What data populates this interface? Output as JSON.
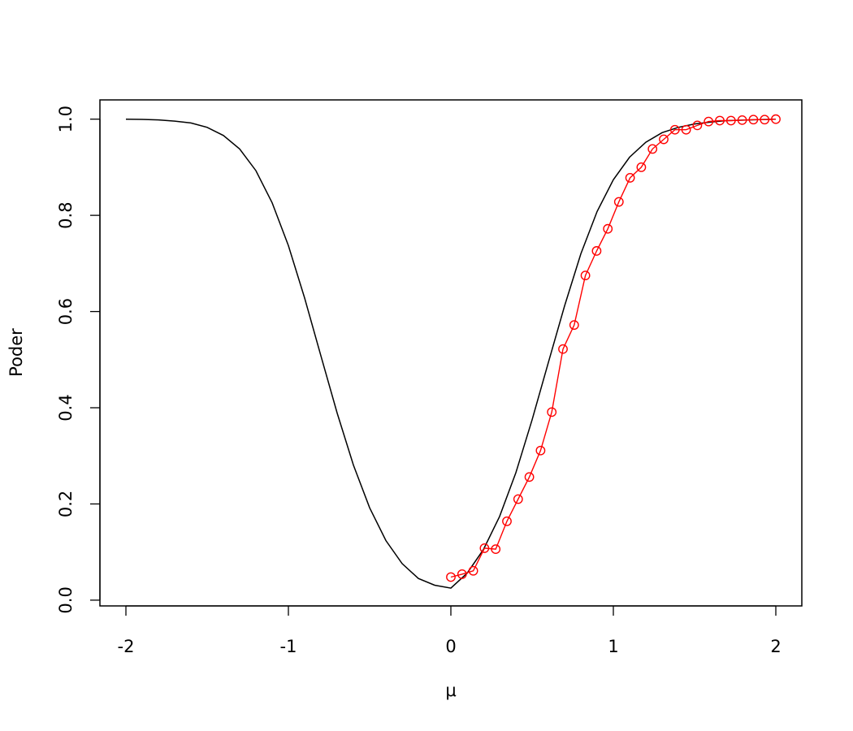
{
  "chart_data": {
    "type": "line",
    "title": "",
    "xlabel": "μ",
    "ylabel": "Poder",
    "xlim": [
      -2.16,
      2.16
    ],
    "ylim": [
      -0.012,
      1.04
    ],
    "x_ticks": [
      -2,
      -1,
      0,
      1,
      2
    ],
    "x_tick_labels": [
      "-2",
      "-1",
      "0",
      "1",
      "2"
    ],
    "y_ticks": [
      0,
      0.2,
      0.4,
      0.6,
      0.8,
      1.0
    ],
    "y_tick_labels": [
      "0.0",
      "0.2",
      "0.4",
      "0.6",
      "0.8",
      "1.0"
    ],
    "grid": false,
    "legend": "none",
    "series": [
      {
        "style": "line",
        "color": "#000000",
        "x": [
          -2.0,
          -1.9,
          -1.8,
          -1.7,
          -1.6,
          -1.5,
          -1.4,
          -1.3,
          -1.2,
          -1.1,
          -1.0,
          -0.9,
          -0.8,
          -0.7,
          -0.6,
          -0.5,
          -0.4,
          -0.3,
          -0.2,
          -0.1,
          0.0,
          0.1,
          0.2,
          0.3,
          0.4,
          0.5,
          0.6,
          0.7,
          0.8,
          0.9,
          1.0,
          1.1,
          1.2,
          1.3,
          1.4,
          1.5,
          1.6,
          1.7,
          1.8,
          1.9,
          2.0
        ],
        "y": [
          1.0,
          0.9995,
          0.9985,
          0.996,
          0.992,
          0.983,
          0.966,
          0.938,
          0.893,
          0.826,
          0.737,
          0.628,
          0.508,
          0.389,
          0.281,
          0.192,
          0.124,
          0.076,
          0.045,
          0.031,
          0.025,
          0.056,
          0.105,
          0.174,
          0.265,
          0.375,
          0.494,
          0.612,
          0.72,
          0.808,
          0.874,
          0.921,
          0.952,
          0.972,
          0.983,
          0.99,
          0.994,
          0.997,
          0.998,
          0.999,
          1.0
        ]
      },
      {
        "style": "line-points",
        "color": "#ff0000",
        "x": [
          0.0,
          0.069,
          0.138,
          0.207,
          0.276,
          0.345,
          0.414,
          0.483,
          0.552,
          0.621,
          0.69,
          0.759,
          0.828,
          0.897,
          0.966,
          1.034,
          1.103,
          1.172,
          1.241,
          1.31,
          1.379,
          1.448,
          1.517,
          1.586,
          1.655,
          1.724,
          1.793,
          1.862,
          1.931,
          2.0
        ],
        "y": [
          0.048,
          0.054,
          0.061,
          0.108,
          0.106,
          0.164,
          0.21,
          0.256,
          0.311,
          0.391,
          0.522,
          0.572,
          0.675,
          0.726,
          0.772,
          0.828,
          0.878,
          0.9,
          0.938,
          0.958,
          0.978,
          0.978,
          0.987,
          0.995,
          0.997,
          0.997,
          0.998,
          0.999,
          0.999,
          1.0
        ]
      }
    ]
  }
}
